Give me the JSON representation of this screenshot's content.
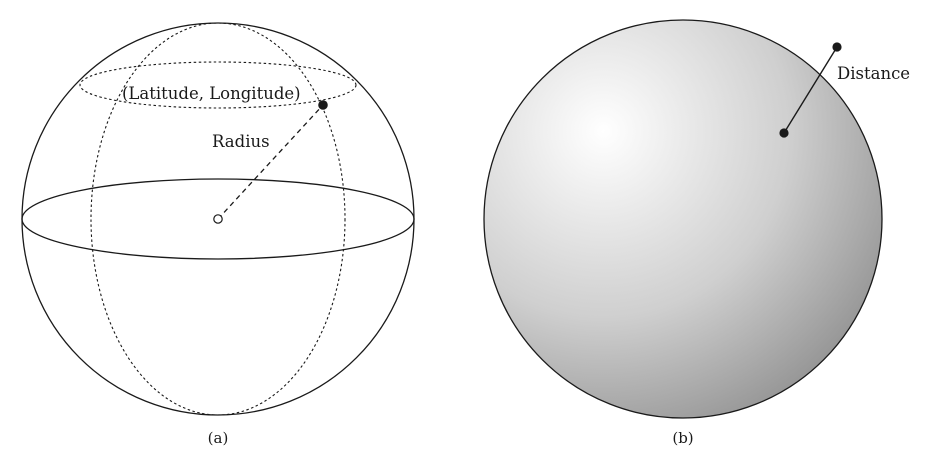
{
  "panel_a": {
    "point_label": "(Latitude, Longitude)",
    "radius_label": "Radius",
    "caption": "(a)"
  },
  "panel_b": {
    "distance_label": "Distance",
    "caption": "(b)"
  },
  "colors": {
    "stroke": "#1a1a1a",
    "sphere_highlight": "#ffffff",
    "sphere_shadow": "#8a8a8a"
  }
}
